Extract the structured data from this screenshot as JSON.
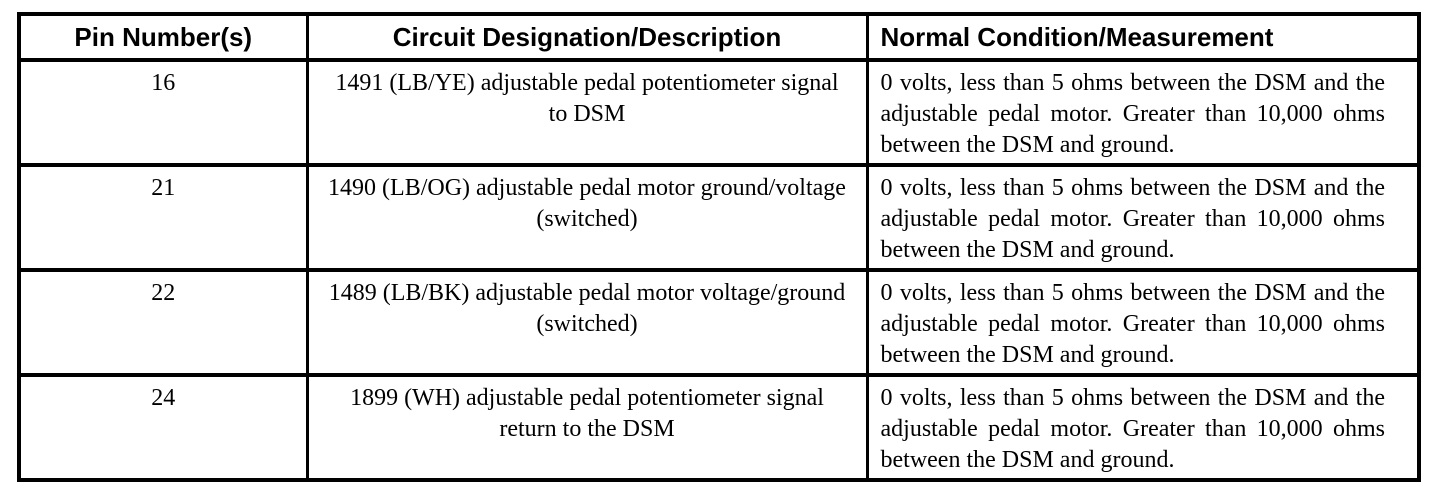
{
  "table": {
    "columns": [
      {
        "label": "Pin Number(s)"
      },
      {
        "label": "Circuit Designation/Description"
      },
      {
        "label": "Normal Condition/Measurement"
      }
    ],
    "rows": [
      {
        "pin": "16",
        "circuit": "1491 (LB/YE) adjustable pedal potentiometer signal to DSM",
        "condition": "0 volts, less than 5 ohms between the DSM and the adjustable pedal motor. Greater than 10,000 ohms between the DSM and ground."
      },
      {
        "pin": "21",
        "circuit": "1490 (LB/OG) adjustable pedal motor ground/voltage (switched)",
        "condition": "0 volts, less than 5 ohms between the DSM and the adjustable pedal motor. Greater than 10,000 ohms between the DSM and ground."
      },
      {
        "pin": "22",
        "circuit": "1489 (LB/BK) adjustable pedal motor voltage/ground (switched)",
        "condition": "0 volts, less than 5 ohms between the DSM and the adjustable pedal motor. Greater than 10,000 ohms between the DSM and ground."
      },
      {
        "pin": "24",
        "circuit": "1899 (WH) adjustable pedal potentiometer signal return to the DSM",
        "condition": "0 volts, less than 5 ohms between the DSM and the adjustable pedal motor. Greater than 10,000 ohms between the DSM and ground."
      }
    ]
  },
  "colors": {
    "border": "#000000",
    "text": "#000000",
    "background": "#ffffff"
  }
}
